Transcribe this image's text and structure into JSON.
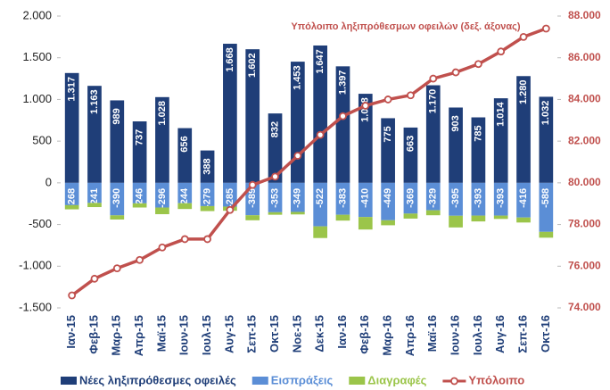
{
  "chart_data": {
    "type": "bar-line",
    "annotation": "Υπόλοιπο ληξιπρόθεσμων οφειλών (δεξ. άξονας)",
    "categories": [
      "Ιαν-15",
      "Φεβ-15",
      "Μαρ-15",
      "Απρ-15",
      "Μαϊ-15",
      "Ιουν-15",
      "Ιουλ-15",
      "Αυγ-15",
      "Σεπ-15",
      "Οκτ-15",
      "Νοε-15",
      "Δεκ-15",
      "Ιαν-16",
      "Φεβ-16",
      "Μαρ-16",
      "Απρ-16",
      "Μαϊ-16",
      "Ιουν-16",
      "Ιουλ-16",
      "Αυγ-16",
      "Σεπ-16",
      "Οκτ-16"
    ],
    "series": [
      {
        "name": "Νέες ληξιπρόθεσμες οφειλές",
        "color": "#1f3e78",
        "values": [
          1317,
          1163,
          989,
          737,
          1028,
          656,
          388,
          1668,
          1602,
          832,
          1453,
          1647,
          1397,
          1068,
          775,
          663,
          1170,
          903,
          785,
          1014,
          1280,
          1032
        ],
        "value_labels": [
          "1.317",
          "1.163",
          "989",
          "737",
          "1.028",
          "656",
          "388",
          "1.668",
          "1.602",
          "832",
          "1.453",
          "1.647",
          "1.397",
          "1.068",
          "775",
          "663",
          "1.170",
          "903",
          "785",
          "1.014",
          "1.280",
          "1.032"
        ]
      },
      {
        "name": "Εισπράξεις",
        "color": "#5b8ed6",
        "values": [
          -268,
          -241,
          -390,
          -246,
          -296,
          -244,
          -279,
          -285,
          -389,
          -353,
          -349,
          -522,
          -383,
          -410,
          -449,
          -369,
          -329,
          -395,
          -393,
          -393,
          -416,
          -588
        ],
        "value_labels": [
          "-268",
          "-241",
          "-390",
          "-246",
          "-296",
          "-244",
          "-279",
          "-285",
          "-389",
          "-353",
          "-349",
          "-522",
          "-383",
          "-410",
          "-449",
          "-369",
          "-329",
          "-395",
          "-393",
          "-393",
          "-416",
          "-588"
        ]
      },
      {
        "name": "Διαγραφές",
        "color": "#9bc54a",
        "values": [
          -50,
          -50,
          -50,
          -50,
          -80,
          -70,
          -60,
          -50,
          -60,
          -30,
          -30,
          -140,
          -70,
          -150,
          -60,
          -60,
          -60,
          -140,
          -70,
          -40,
          -60,
          -70
        ]
      },
      {
        "name": "Υπόλοιπο",
        "color": "#c0504d",
        "axis": "y2",
        "values": [
          74600,
          75400,
          75900,
          76300,
          76900,
          77300,
          77300,
          78700,
          79900,
          80300,
          81300,
          82300,
          83200,
          83700,
          84000,
          84200,
          85000,
          85300,
          85700,
          86300,
          87000,
          87400
        ]
      }
    ],
    "ylim": [
      -1500,
      2000
    ],
    "yticks": [
      {
        "value": -1500,
        "label": "-1.500"
      },
      {
        "value": -1000,
        "label": "-1.000"
      },
      -500,
      0,
      500,
      {
        "value": 1000,
        "label": "1.000"
      },
      {
        "value": 1500,
        "label": "1.500"
      },
      {
        "value": 2000,
        "label": "2.000"
      }
    ],
    "y2lim": [
      74000,
      88000
    ],
    "y2ticks": [
      {
        "value": 74000,
        "label": "74.000"
      },
      {
        "value": 76000,
        "label": "76.000"
      },
      {
        "value": 78000,
        "label": "78.000"
      },
      {
        "value": 80000,
        "label": "80.000"
      },
      {
        "value": 82000,
        "label": "82.000"
      },
      {
        "value": 84000,
        "label": "84.000"
      },
      {
        "value": 86000,
        "label": "86.000"
      },
      {
        "value": 88000,
        "label": "88.000"
      }
    ],
    "grid": false
  }
}
